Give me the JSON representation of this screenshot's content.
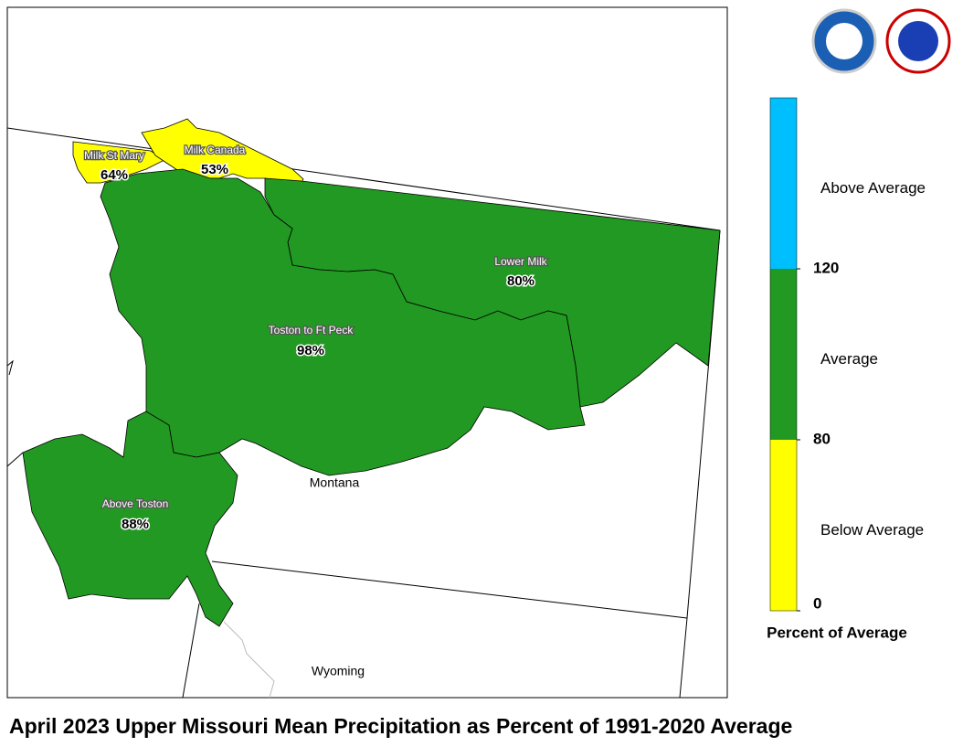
{
  "title": "April 2023 Upper Missouri Mean Precipitation as Percent of 1991-2020 Average",
  "regions": [
    {
      "name": "Milk St Mary",
      "label": "64%",
      "color": "#ffff00"
    },
    {
      "name": "Milk Canada",
      "label": "53%",
      "color": "#ffff00"
    },
    {
      "name": "Lower Milk",
      "label": "80%",
      "color": "#229922"
    },
    {
      "name": "Toston to Ft Peck",
      "label": "98%",
      "color": "#229922"
    },
    {
      "name": "Above Toston",
      "label": "88%",
      "color": "#229922"
    }
  ],
  "states": [
    "Montana",
    "Wyoming"
  ],
  "legend": {
    "title": "Percent of Average",
    "bands": [
      {
        "label": "Above Average",
        "color": "#00bfff"
      },
      {
        "label": "Average",
        "color": "#229922"
      },
      {
        "label": "Below Average",
        "color": "#ffff00"
      }
    ],
    "ticks": [
      120,
      80,
      0
    ]
  }
}
